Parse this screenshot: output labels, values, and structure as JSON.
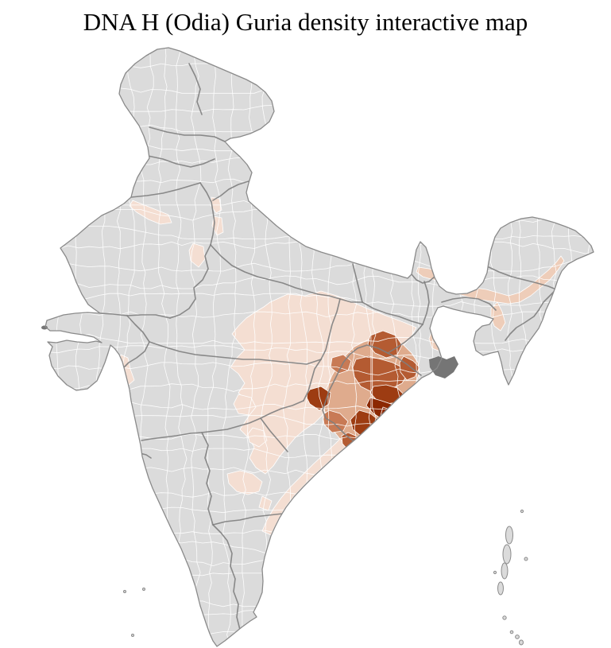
{
  "title": "DNA H (Odia) Guria density interactive map",
  "map": {
    "region_label": "india-district-choropleth",
    "palette": {
      "background": "#ffffff",
      "land_base": "#dbdbdb",
      "district_border": "#ffffff",
      "state_border": "#7e7e7e",
      "coast_border": "#8a8a8a",
      "marsh": "#757575",
      "density_scale": [
        "#f4ded2",
        "#eecdb9",
        "#dfab8d",
        "#c87a55",
        "#b45b32",
        "#9d3c12",
        "#8b2802"
      ]
    },
    "density_regions": [
      {
        "id": "east-coast-core-darkest",
        "tier": 6
      },
      {
        "id": "east-coast-core-dark",
        "tier": 5
      },
      {
        "id": "east-coast-inner-ring",
        "tier": 4
      },
      {
        "id": "east-coast-outer-ring",
        "tier": 3
      },
      {
        "id": "east-coast-cluster-underlay",
        "tier": 2
      },
      {
        "id": "central-east-belt",
        "tier": 0
      },
      {
        "id": "southeast-coastal-strip",
        "tier": 0
      },
      {
        "id": "northeast-valley-belt",
        "tier": 1
      },
      {
        "id": "scattered-light-patches",
        "tier": 0
      }
    ]
  }
}
